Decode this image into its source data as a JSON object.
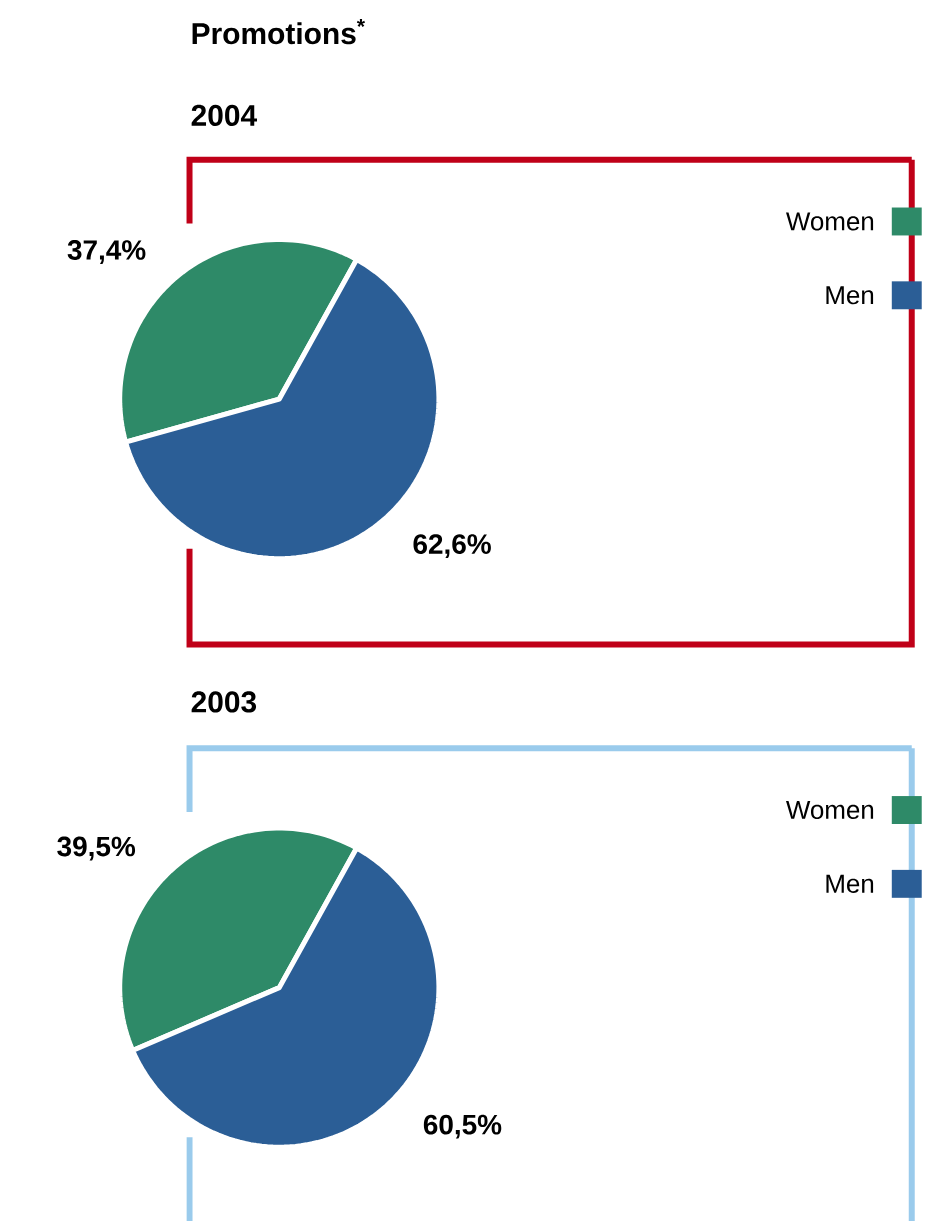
{
  "chart_data": [
    {
      "type": "pie",
      "title": "Promotions$^{*}$",
      "subtitle": "2004",
      "categories": [
        "Women",
        "Men"
      ],
      "values": [
        37.4,
        62.6
      ],
      "colors": [
        "#2e8a68",
        "#2b5e96"
      ],
      "value_labels": [
        "37,4%",
        "62,6%"
      ],
      "legend": "top right"
    },
    {
      "type": "pie",
      "title": "2003",
      "categories": [
        "Women",
        "Men"
      ],
      "values": [
        39.5,
        60.5
      ],
      "colors": [
        "#2e8a68",
        "#2b5e96"
      ],
      "value_labels": [
        "39,5%",
        "60,5%"
      ],
      "legend": "top right"
    }
  ]
}
